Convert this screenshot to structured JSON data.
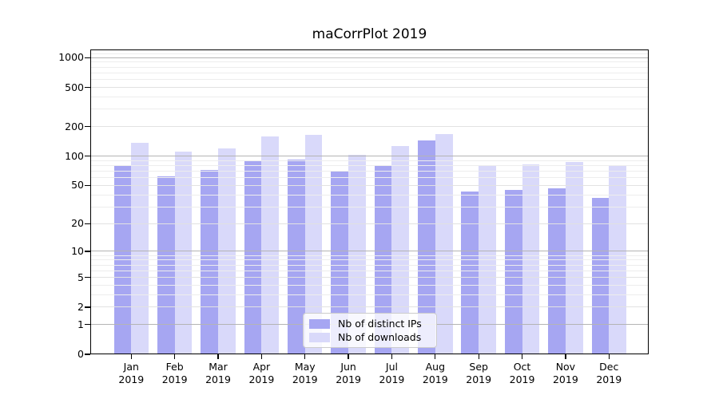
{
  "chart_data": {
    "type": "bar",
    "title": "maCorrPlot 2019",
    "categories": [
      "Jan",
      "Feb",
      "Mar",
      "Apr",
      "May",
      "Jun",
      "Jul",
      "Aug",
      "Sep",
      "Oct",
      "Nov",
      "Dec"
    ],
    "x_tick_year": "2019",
    "series": [
      {
        "name": "Nb of distinct IPs",
        "color": "#a6a6f2",
        "values": [
          80,
          62,
          72,
          91,
          93,
          70,
          79,
          146,
          43,
          45,
          47,
          37
        ]
      },
      {
        "name": "Nb of downloads",
        "color": "#d9d9fa",
        "values": [
          136,
          112,
          119,
          160,
          165,
          103,
          126,
          169,
          80,
          83,
          88,
          80
        ]
      }
    ],
    "yscale": "log1p",
    "ylim": [
      0,
      1220
    ],
    "xlabel": "",
    "ylabel": "",
    "grid": true,
    "legend_position": "lower center",
    "y_tick_labels": [
      "0",
      "1",
      "2",
      "5",
      "10",
      "20",
      "50",
      "100",
      "200",
      "500",
      "1000"
    ],
    "y_major_ticks": [
      0,
      1,
      2,
      5,
      10,
      20,
      50,
      100,
      200,
      500,
      1000
    ],
    "y_minor_gridlines": [
      3,
      4,
      6,
      7,
      8,
      9,
      30,
      40,
      60,
      70,
      80,
      90,
      300,
      400,
      600,
      700,
      800,
      900,
      1100
    ],
    "colors": {
      "background": "#ffffff",
      "bar_dark": "#a6a6f2",
      "bar_light": "#d9d9fa",
      "gridline_pow10": "#b4b4b4",
      "gridline_major": "#e2e2e2",
      "gridline_minor": "#ededed",
      "axis": "#000000",
      "legend_border": "#cccccc"
    }
  }
}
